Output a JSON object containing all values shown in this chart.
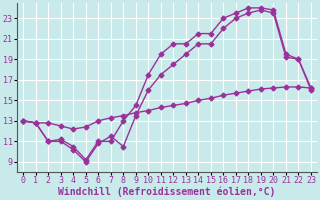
{
  "bg_color": "#c8eaea",
  "line_color": "#993399",
  "grid_color": "#ffffff",
  "line_width": 1.0,
  "marker": "D",
  "marker_size": 2.5,
  "xlabel": "Windchill (Refroidissement éolien,°C)",
  "xlabel_fontsize": 7.0,
  "tick_fontsize": 6.0,
  "xlim": [
    -0.5,
    23.5
  ],
  "ylim": [
    8.0,
    24.5
  ],
  "xticks": [
    0,
    1,
    2,
    3,
    4,
    5,
    6,
    7,
    8,
    9,
    10,
    11,
    12,
    13,
    14,
    15,
    16,
    17,
    18,
    19,
    20,
    21,
    22,
    23
  ],
  "yticks": [
    9,
    11,
    13,
    15,
    17,
    19,
    21,
    23
  ],
  "line1_x": [
    0,
    1,
    2,
    3,
    4,
    5,
    6,
    7,
    8,
    9,
    10,
    11,
    12,
    13,
    14,
    15,
    16,
    17,
    18,
    19,
    20,
    21,
    22,
    23
  ],
  "line1_y": [
    13.0,
    12.8,
    12.8,
    12.5,
    12.2,
    12.4,
    13.0,
    13.3,
    13.5,
    13.8,
    14.0,
    14.3,
    14.5,
    14.7,
    15.0,
    15.2,
    15.5,
    15.7,
    15.9,
    16.1,
    16.2,
    16.3,
    16.3,
    16.2
  ],
  "line2_x": [
    0,
    1,
    2,
    3,
    4,
    5,
    6,
    7,
    8,
    9,
    10,
    11,
    12,
    13,
    14,
    15,
    16,
    17,
    18,
    19,
    20,
    21,
    22,
    23
  ],
  "line2_y": [
    13.0,
    12.8,
    11.0,
    11.0,
    10.2,
    9.0,
    10.8,
    11.5,
    10.5,
    13.5,
    16.0,
    17.5,
    18.5,
    19.5,
    20.5,
    20.5,
    22.0,
    23.0,
    23.5,
    23.8,
    23.5,
    19.2,
    19.0,
    16.2
  ],
  "line3_x": [
    0,
    1,
    2,
    3,
    4,
    5,
    6,
    7,
    8,
    9,
    10,
    11,
    12,
    13,
    14,
    15,
    16,
    17,
    18,
    19,
    20,
    21,
    22,
    23
  ],
  "line3_y": [
    13.0,
    12.8,
    11.0,
    11.2,
    10.5,
    9.2,
    11.0,
    11.0,
    13.0,
    14.5,
    17.5,
    19.5,
    20.5,
    20.5,
    21.5,
    21.5,
    23.0,
    23.5,
    24.0,
    24.0,
    23.8,
    19.5,
    19.0,
    16.0
  ]
}
